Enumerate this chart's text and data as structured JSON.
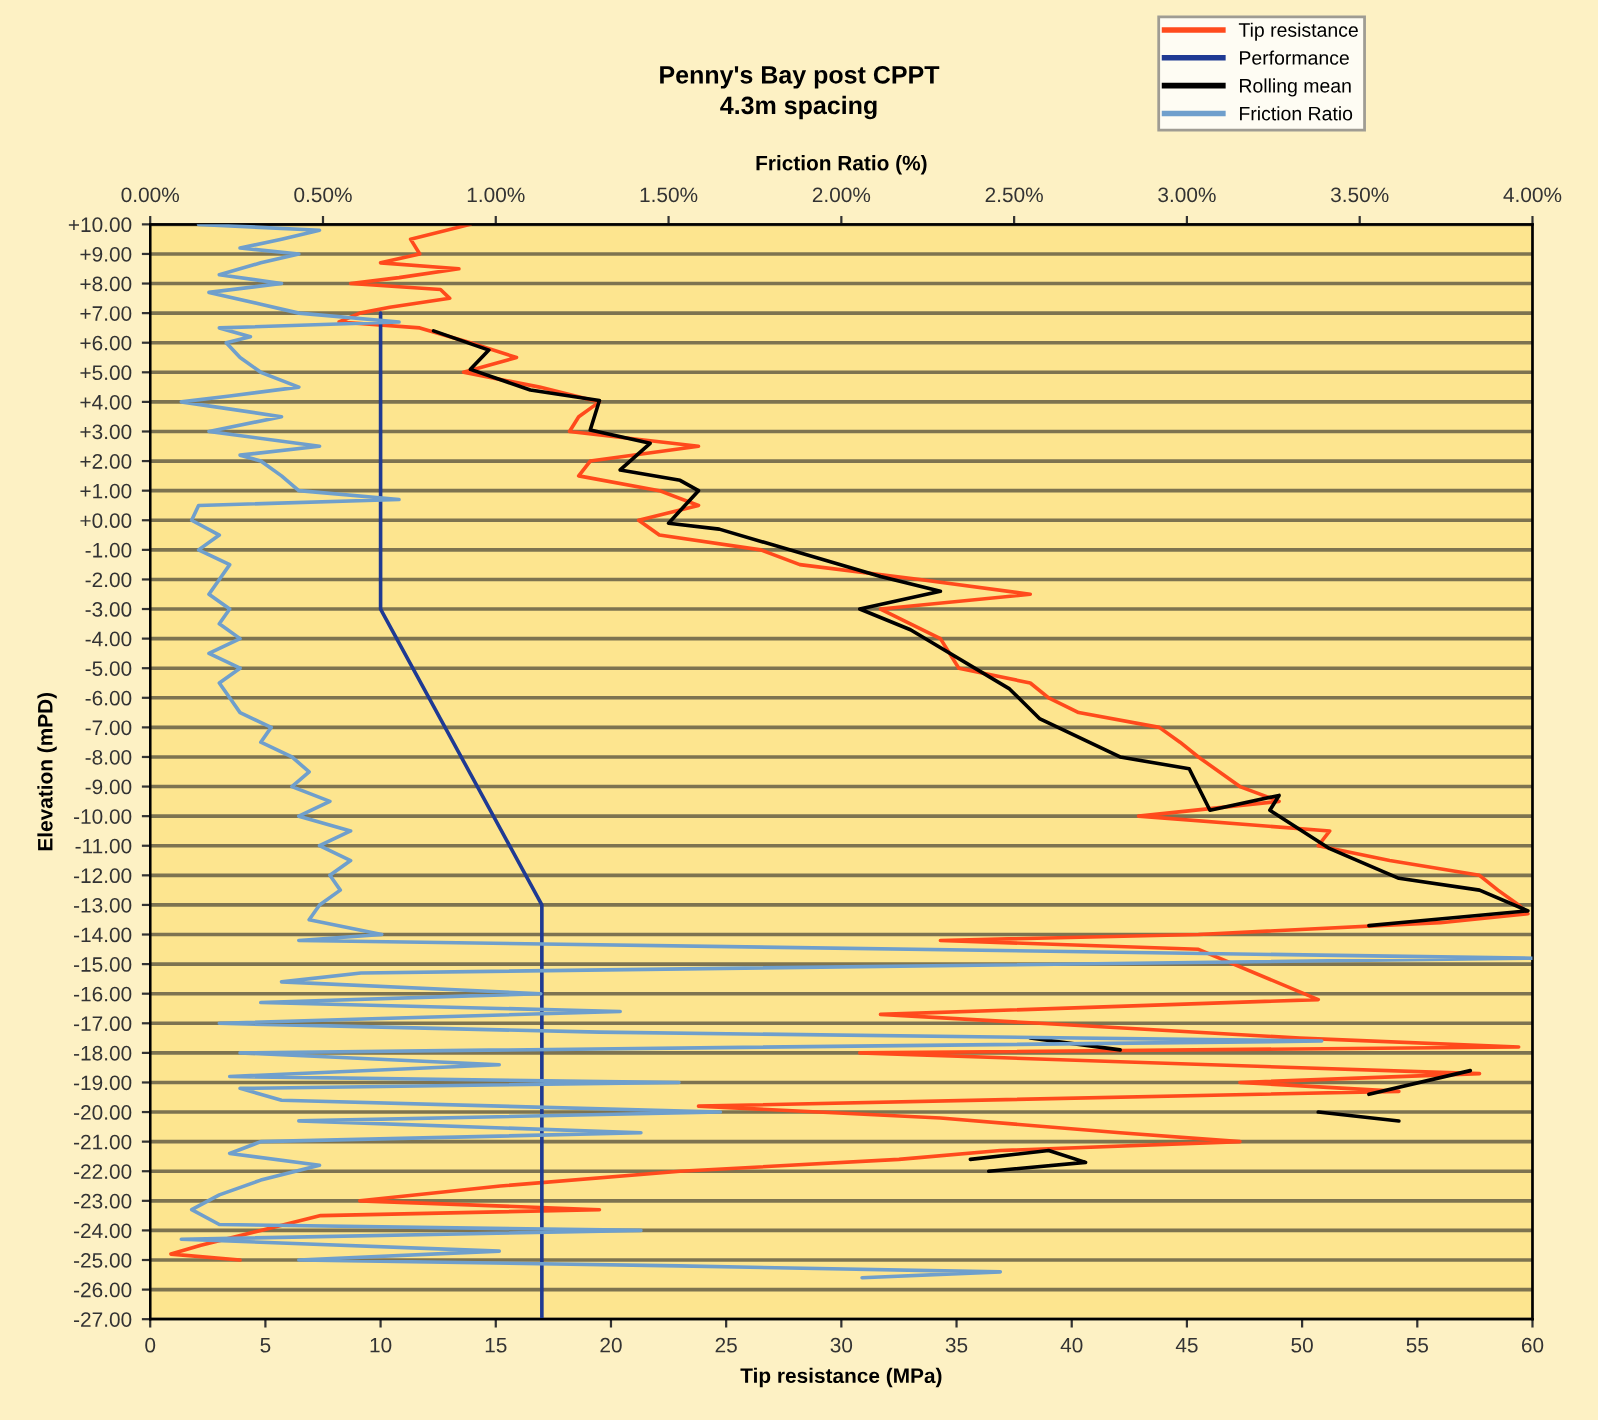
{
  "chart_data": {
    "type": "line",
    "title": "Penny's Bay post CPPT\n4.3m spacing",
    "xlabel": "Tip resistance (MPa)",
    "x2label": "Friction Ratio (%)",
    "ylabel": "Elevation (mPD)",
    "xlim": [
      0,
      60
    ],
    "xticks": [
      0,
      5,
      10,
      15,
      20,
      25,
      30,
      35,
      40,
      45,
      50,
      55,
      60
    ],
    "x2lim": [
      0,
      4
    ],
    "x2ticks": [
      {
        "value": 0,
        "label": "0.00%"
      },
      {
        "value": 0.5,
        "label": "0.50%"
      },
      {
        "value": 1,
        "label": "1.00%"
      },
      {
        "value": 1.5,
        "label": "1.50%"
      },
      {
        "value": 2,
        "label": "2.00%"
      },
      {
        "value": 2.5,
        "label": "2.50%"
      },
      {
        "value": 3,
        "label": "3.00%"
      },
      {
        "value": 3.5,
        "label": "3.50%"
      },
      {
        "value": 4,
        "label": "4.00%"
      }
    ],
    "ylim": [
      -27,
      10
    ],
    "yticks": [
      {
        "value": 10,
        "label": "+10.00"
      },
      {
        "value": 9,
        "label": "+9.00"
      },
      {
        "value": 8,
        "label": "+8.00"
      },
      {
        "value": 7,
        "label": "+7.00"
      },
      {
        "value": 6,
        "label": "+6.00"
      },
      {
        "value": 5,
        "label": "+5.00"
      },
      {
        "value": 4,
        "label": "+4.00"
      },
      {
        "value": 3,
        "label": "+3.00"
      },
      {
        "value": 2,
        "label": "+2.00"
      },
      {
        "value": 1,
        "label": "+1.00"
      },
      {
        "value": 0,
        "label": "+0.00"
      },
      {
        "value": -1,
        "label": "-1.00"
      },
      {
        "value": -2,
        "label": "-2.00"
      },
      {
        "value": -3,
        "label": "-3.00"
      },
      {
        "value": -4,
        "label": "-4.00"
      },
      {
        "value": -5,
        "label": "-5.00"
      },
      {
        "value": -6,
        "label": "-6.00"
      },
      {
        "value": -7,
        "label": "-7.00"
      },
      {
        "value": -8,
        "label": "-8.00"
      },
      {
        "value": -9,
        "label": "-9.00"
      },
      {
        "value": -10,
        "label": "-10.00"
      },
      {
        "value": -11,
        "label": "-11.00"
      },
      {
        "value": -12,
        "label": "-12.00"
      },
      {
        "value": -13,
        "label": "-13.00"
      },
      {
        "value": -14,
        "label": "-14.00"
      },
      {
        "value": -15,
        "label": "-15.00"
      },
      {
        "value": -16,
        "label": "-16.00"
      },
      {
        "value": -17,
        "label": "-17.00"
      },
      {
        "value": -18,
        "label": "-18.00"
      },
      {
        "value": -19,
        "label": "-19.00"
      },
      {
        "value": -20,
        "label": "-20.00"
      },
      {
        "value": -21,
        "label": "-21.00"
      },
      {
        "value": -22,
        "label": "-22.00"
      },
      {
        "value": -23,
        "label": "-23.00"
      },
      {
        "value": -24,
        "label": "-24.00"
      },
      {
        "value": -25,
        "label": "-25.00"
      },
      {
        "value": -26,
        "label": "-26.00"
      },
      {
        "value": -27,
        "label": "-27.00"
      }
    ],
    "grid": "y",
    "legend": "top right",
    "marker": "none",
    "line_style": "solid",
    "series": [
      {
        "name": "Tip resistance",
        "color": "#ff4a1c",
        "x": [
          13.9,
          11.3,
          11.7,
          10.0,
          13.4,
          10.8,
          8.7,
          12.6,
          13.0,
          10.4,
          9.1,
          8.2,
          11.7,
          13.9,
          15.9,
          13.6,
          16.9,
          19.5,
          18.6,
          18.2,
          23.8,
          19.1,
          18.6,
          22.1,
          23.8,
          21.2,
          22.1,
          26.5,
          28.2,
          33.4,
          38.2,
          31.7,
          33.0,
          34.3,
          35.1,
          38.2,
          39.0,
          40.3,
          43.8,
          44.7,
          45.5,
          47.3,
          49.0,
          42.9,
          51.2,
          50.7,
          53.8,
          57.7,
          58.5,
          59.4,
          59.8,
          56.0,
          45.5,
          34.3,
          45.5,
          50.7,
          31.7,
          38.6,
          49.9,
          59.4,
          30.8,
          42.1,
          57.7,
          47.3,
          54.2,
          23.8,
          34.3,
          42.1,
          47.3,
          36.9,
          32.5,
          23.0,
          15.2,
          9.1,
          19.5,
          7.4,
          4.8,
          2.2,
          0.9,
          3.9
        ],
        "values": [
          10,
          9.5,
          9,
          8.7,
          8.5,
          8.2,
          8,
          7.8,
          7.5,
          7.2,
          7,
          6.7,
          6.5,
          6,
          5.5,
          5,
          4.5,
          4,
          3.5,
          3,
          2.5,
          2,
          1.5,
          1,
          0.5,
          0,
          -0.5,
          -1,
          -1.5,
          -2,
          -2.5,
          -3,
          -3.5,
          -4,
          -5,
          -5.5,
          -6,
          -6.5,
          -7,
          -7.5,
          -8,
          -9,
          -9.5,
          -10,
          -10.5,
          -11,
          -11.5,
          -12,
          -12.5,
          -13,
          -13.3,
          -13.6,
          -14,
          -14.2,
          -14.5,
          -16.2,
          -16.7,
          -17,
          -17.5,
          -17.8,
          -18,
          -18.3,
          -18.7,
          -19,
          -19.3,
          -19.8,
          -20.2,
          -20.7,
          -21,
          -21.3,
          -21.6,
          -22,
          -22.5,
          -23,
          -23.3,
          -23.5,
          -24,
          -24.5,
          -24.8,
          -25
        ]
      },
      {
        "name": "Performance",
        "color": "#1f3a93",
        "x": [
          10,
          10,
          17,
          17
        ],
        "values": [
          7,
          -3,
          -13,
          -27
        ]
      },
      {
        "name": "Rolling mean",
        "color": "#000000",
        "x": [
          12.3,
          14.7,
          13.9,
          16.5,
          19.5,
          19.1,
          21.7,
          20.4,
          23.0,
          23.8,
          22.5,
          24.7,
          31.7,
          34.3,
          30.8,
          33.0,
          37.3,
          38.6,
          42.1,
          45.1,
          46.0,
          49.0,
          48.6,
          51.2,
          54.2,
          57.7,
          59.8,
          54.2,
          52.9,
          null,
          38.2,
          42.1,
          null,
          52.9,
          57.3,
          null,
          54.2,
          50.7,
          null,
          35.6,
          39.0,
          40.6,
          36.4
        ],
        "values": [
          6.4,
          5.75,
          5.1,
          4.4,
          4.05,
          3.05,
          2.6,
          1.7,
          1.35,
          1.0,
          -0.1,
          -0.3,
          -1.9,
          -2.4,
          -3.0,
          -3.7,
          -5.7,
          -6.7,
          -8.0,
          -8.4,
          -9.8,
          -9.3,
          -9.8,
          -11.1,
          -12.1,
          -12.5,
          -13.2,
          -13.6,
          -13.7,
          null,
          -17.5,
          -17.9,
          null,
          -19.4,
          -18.6,
          null,
          -20.3,
          -20.0,
          null,
          -21.6,
          -21.3,
          -21.7,
          -22.0
        ]
      },
      {
        "name": "Friction Ratio",
        "color": "#6f9fcc",
        "axis": "x2",
        "x": [
          0.14,
          0.49,
          0.38,
          0.26,
          0.43,
          0.32,
          0.2,
          0.38,
          0.17,
          0.32,
          0.43,
          0.72,
          0.2,
          0.29,
          0.22,
          0.26,
          0.32,
          0.43,
          0.23,
          0.09,
          0.38,
          0.17,
          0.49,
          0.26,
          0.32,
          0.38,
          0.43,
          0.72,
          0.14,
          0.12,
          0.2,
          0.14,
          0.23,
          0.2,
          0.17,
          0.23,
          0.2,
          0.26,
          0.17,
          0.26,
          0.2,
          0.23,
          0.26,
          0.35,
          0.32,
          0.41,
          0.46,
          0.41,
          0.52,
          0.43,
          0.58,
          0.49,
          0.58,
          0.52,
          0.55,
          0.49,
          0.46,
          0.67,
          0.43,
          4.0,
          0.61,
          0.38,
          1.13,
          0.32,
          1.36,
          0.2,
          1.3,
          3.39,
          0.26,
          1.01,
          0.23,
          1.53,
          0.26,
          0.38,
          1.65,
          0.43,
          1.42,
          0.32,
          0.23,
          0.49,
          0.32,
          0.2,
          0.12,
          0.2,
          1.42,
          0.09,
          1.01,
          0.43,
          1.53,
          2.46,
          2.06
        ],
        "values": [
          10,
          9.8,
          9.5,
          9.2,
          9,
          8.7,
          8.3,
          8,
          7.7,
          7.3,
          7,
          6.7,
          6.5,
          6.2,
          6,
          5.5,
          5,
          4.5,
          4.2,
          4,
          3.5,
          3,
          2.5,
          2.2,
          2,
          1.5,
          1,
          0.7,
          0.5,
          0,
          -0.5,
          -1,
          -1.5,
          -2,
          -2.5,
          -3,
          -3.5,
          -4,
          -4.5,
          -5,
          -5.5,
          -6,
          -6.5,
          -7,
          -7.5,
          -8,
          -8.5,
          -9,
          -9.5,
          -10,
          -10.5,
          -11,
          -11.5,
          -12,
          -12.5,
          -13,
          -13.5,
          -14,
          -14.2,
          -14.8,
          -15.3,
          -15.6,
          -16,
          -16.3,
          -16.6,
          -17,
          -17.3,
          -17.6,
          -18,
          -18.4,
          -18.8,
          -19,
          -19.2,
          -19.6,
          -20,
          -20.3,
          -20.7,
          -21,
          -21.4,
          -21.8,
          -22.3,
          -22.8,
          -23.3,
          -23.8,
          -24,
          -24.3,
          -24.7,
          -25,
          -25.2,
          -25.4,
          -25.6
        ]
      }
    ]
  }
}
